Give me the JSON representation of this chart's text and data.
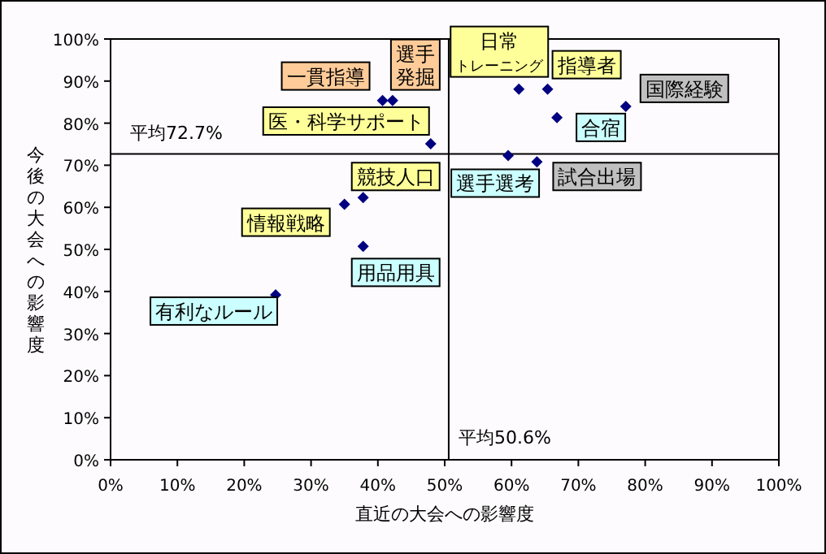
{
  "chart_data": {
    "type": "scatter",
    "xlabel": "直近の大会への影響度",
    "ylabel": "今後の大会への影響度",
    "marker": "diamond",
    "grid": false,
    "xlim": [
      0,
      100
    ],
    "ylim": [
      0,
      100
    ],
    "xticks": [
      {
        "value": 0,
        "label": "0%"
      },
      {
        "value": 10,
        "label": "10%"
      },
      {
        "value": 20,
        "label": "20%"
      },
      {
        "value": 30,
        "label": "30%"
      },
      {
        "value": 40,
        "label": "40%"
      },
      {
        "value": 50,
        "label": "50%"
      },
      {
        "value": 60,
        "label": "60%"
      },
      {
        "value": 70,
        "label": "70%"
      },
      {
        "value": 80,
        "label": "80%"
      },
      {
        "value": 90,
        "label": "90%"
      },
      {
        "value": 100,
        "label": "100%"
      }
    ],
    "yticks": [
      {
        "value": 0,
        "label": "0%"
      },
      {
        "value": 10,
        "label": "10%"
      },
      {
        "value": 20,
        "label": "20%"
      },
      {
        "value": 30,
        "label": "30%"
      },
      {
        "value": 40,
        "label": "40%"
      },
      {
        "value": 50,
        "label": "50%"
      },
      {
        "value": 60,
        "label": "60%"
      },
      {
        "value": 70,
        "label": "70%"
      },
      {
        "value": 80,
        "label": "80%"
      },
      {
        "value": 90,
        "label": "90%"
      },
      {
        "value": 100,
        "label": "100%"
      }
    ],
    "series": [
      {
        "color": "#000080",
        "x": [
          40.7,
          42.2,
          47.9,
          37.8,
          35.0,
          37.8,
          24.7,
          61.1,
          65.4,
          77.1,
          66.8,
          59.5,
          63.8
        ],
        "values": [
          85.4,
          85.4,
          75.1,
          62.3,
          60.7,
          50.7,
          39.2,
          88.1,
          88.1,
          84.0,
          81.3,
          72.3,
          70.8
        ]
      }
    ],
    "ref_lines": [
      {
        "axis": "y",
        "value": 72.7,
        "label": "平均72.7%",
        "color": "#000000"
      },
      {
        "axis": "x",
        "value": 50.6,
        "label": "平均50.6%",
        "color": "#000000"
      }
    ],
    "annotations": [
      {
        "text": "一貫指導",
        "x": 40.7,
        "y": 85.4
      },
      {
        "text": "選手発掘",
        "x": 42.2,
        "y": 85.4
      },
      {
        "text": "医・科学サポート",
        "x": 47.9,
        "y": 75.1
      },
      {
        "text": "競技人口",
        "x": 37.8,
        "y": 62.3
      },
      {
        "text": "情報戦略",
        "x": 35.0,
        "y": 60.7
      },
      {
        "text": "用品用具",
        "x": 37.8,
        "y": 50.7
      },
      {
        "text": "有利なルール",
        "x": 24.7,
        "y": 39.2
      },
      {
        "text": "日常トレーニング",
        "x": 61.1,
        "y": 88.1
      },
      {
        "text": "指導者",
        "x": 65.4,
        "y": 88.1
      },
      {
        "text": "国際経験",
        "x": 77.1,
        "y": 84.0
      },
      {
        "text": "合宿",
        "x": 66.8,
        "y": 81.3
      },
      {
        "text": "選手選考",
        "x": 59.5,
        "y": 72.3
      },
      {
        "text": "試合出場",
        "x": 63.8,
        "y": 70.8
      }
    ]
  }
}
